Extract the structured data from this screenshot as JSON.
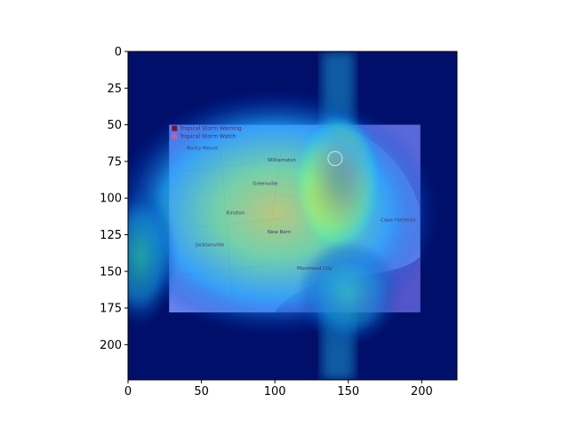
{
  "chart_data": {
    "type": "heatmap",
    "title": "",
    "xlabel": "",
    "ylabel": "",
    "xlim": [
      0,
      224
    ],
    "ylim": [
      224,
      0
    ],
    "x_ticks": [
      0,
      50,
      100,
      150,
      200
    ],
    "y_ticks": [
      0,
      25,
      50,
      75,
      100,
      125,
      150,
      175,
      200
    ],
    "colormap": "jet",
    "base_image": {
      "extent": {
        "x": [
          28,
          199
        ],
        "y": [
          50,
          178
        ]
      },
      "legend": [
        "Tropical Storm Warning",
        "Tropical Storm Watch"
      ],
      "labels": [
        {
          "text": "Rocky Mount",
          "x": 40,
          "y": 67
        },
        {
          "text": "Williamston",
          "x": 95,
          "y": 75
        },
        {
          "text": "Greenville",
          "x": 85,
          "y": 91
        },
        {
          "text": "Kinston",
          "x": 67,
          "y": 111
        },
        {
          "text": "New Bern",
          "x": 95,
          "y": 124
        },
        {
          "text": "Jacksonville",
          "x": 46,
          "y": 133
        },
        {
          "text": "Morehead City",
          "x": 115,
          "y": 149
        },
        {
          "text": "Cape Hatteras",
          "x": 172,
          "y": 116
        }
      ]
    },
    "hotspots": [
      {
        "x": 143,
        "y": 90,
        "rx": 22,
        "ry": 40,
        "intensity": 1.0
      },
      {
        "x": 100,
        "y": 110,
        "rx": 80,
        "ry": 70,
        "intensity": 0.55
      },
      {
        "x": 8,
        "y": 140,
        "rx": 18,
        "ry": 40,
        "intensity": 0.45
      },
      {
        "x": 150,
        "y": 165,
        "rx": 25,
        "ry": 30,
        "intensity": 0.4
      }
    ]
  }
}
